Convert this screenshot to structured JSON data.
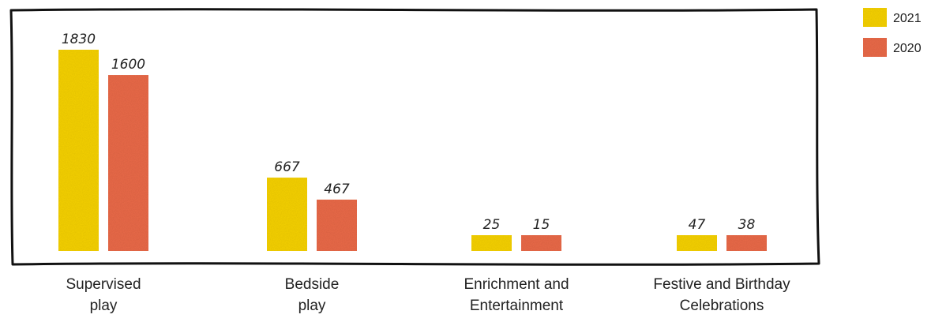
{
  "chart_data": {
    "type": "bar",
    "title": "",
    "xlabel": "",
    "ylabel": "",
    "categories": [
      [
        "Supervised",
        "play"
      ],
      [
        "Bedside",
        "play"
      ],
      [
        "Enrichment and",
        "Entertainment"
      ],
      [
        "Festive and Birthday",
        "Celebrations"
      ]
    ],
    "series": [
      {
        "name": "2021",
        "color": "#f6d20f",
        "values": [
          1830,
          667,
          25,
          47
        ]
      },
      {
        "name": "2020",
        "color": "#ea6b48",
        "values": [
          1600,
          467,
          15,
          38
        ]
      }
    ],
    "legend_position": "top-right",
    "grid": false,
    "frame": "hand-drawn border"
  }
}
